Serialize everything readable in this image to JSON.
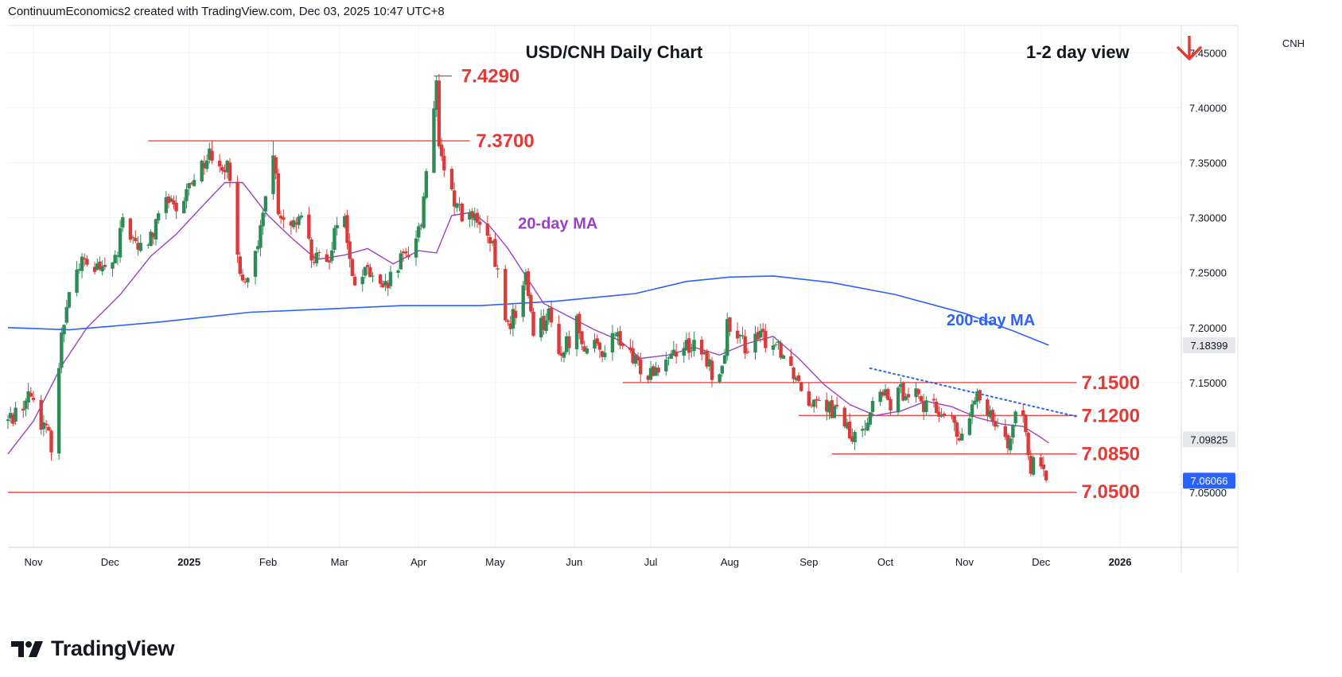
{
  "header": {
    "attribution": "ContinuumEconomics2 created with TradingView.com, Dec 03, 2025 10:47 UTC+8"
  },
  "footer": {
    "brand": "TradingView"
  },
  "colors": {
    "up": "#2e8b57",
    "down": "#d93b3b",
    "level": "#e53935",
    "ma20": "#9c3fc7",
    "ma200": "#2962ff",
    "trendline": "#2962ff",
    "price_tag": "#2962ff",
    "price_tag_gray": "#e6e7ea"
  },
  "chart_data": {
    "type": "candlestick",
    "title": "USD/CNH Daily Chart",
    "view_label": "1-2 day view",
    "view_direction": "down",
    "symbol": "CNH",
    "ylim": [
      7.0,
      7.475
    ],
    "y_ticks": [
      7.05,
      7.1,
      7.15,
      7.2,
      7.25,
      7.3,
      7.35,
      7.4,
      7.45
    ],
    "y_tick_labels": [
      "7.05000",
      "7.10000",
      "7.15000",
      "7.20000",
      "7.25000",
      "7.30000",
      "7.35000",
      "7.40000",
      "7.45000"
    ],
    "x_labels": [
      {
        "date": "2024-11-01",
        "label": "Nov",
        "bold": false
      },
      {
        "date": "2024-12-01",
        "label": "Dec",
        "bold": false
      },
      {
        "date": "2025-01-01",
        "label": "2025",
        "bold": true
      },
      {
        "date": "2025-02-01",
        "label": "Feb",
        "bold": false
      },
      {
        "date": "2025-03-01",
        "label": "Mar",
        "bold": false
      },
      {
        "date": "2025-04-01",
        "label": "Apr",
        "bold": false
      },
      {
        "date": "2025-05-01",
        "label": "May",
        "bold": false
      },
      {
        "date": "2025-06-01",
        "label": "Jun",
        "bold": false
      },
      {
        "date": "2025-07-01",
        "label": "Jul",
        "bold": false
      },
      {
        "date": "2025-08-01",
        "label": "Aug",
        "bold": false
      },
      {
        "date": "2025-09-01",
        "label": "Sep",
        "bold": false
      },
      {
        "date": "2025-10-01",
        "label": "Oct",
        "bold": false
      },
      {
        "date": "2025-11-01",
        "label": "Nov",
        "bold": false
      },
      {
        "date": "2025-12-01",
        "label": "Dec",
        "bold": false
      },
      {
        "date": "2026-01-01",
        "label": "2026",
        "bold": true
      }
    ],
    "x_range": [
      "2024-10-22",
      "2026-01-25"
    ],
    "key_levels": [
      {
        "label": "7.4290",
        "value": 7.429,
        "from": "2025-04-07",
        "to": "2025-04-14"
      },
      {
        "label": "7.3700",
        "value": 7.37,
        "from": "2024-12-16",
        "to": "2025-04-21"
      },
      {
        "label": "7.1500",
        "value": 7.15,
        "from": "2025-06-20",
        "to": "2025-12-15"
      },
      {
        "label": "7.1200",
        "value": 7.12,
        "from": "2025-08-28",
        "to": "2025-12-15"
      },
      {
        "label": "7.0850",
        "value": 7.085,
        "from": "2025-09-10",
        "to": "2025-12-15"
      },
      {
        "label": "7.0500",
        "value": 7.05,
        "from": "2024-10-22",
        "to": "2025-12-15"
      }
    ],
    "trendline": {
      "from_date": "2025-09-25",
      "from_value": 7.163,
      "to_date": "2025-12-15",
      "to_value": 7.119,
      "style": "dotted"
    },
    "series": [
      {
        "name": "20-day MA",
        "label_date": "2025-05-10",
        "label_value": 7.29,
        "points": [
          [
            "2024-10-22",
            7.085
          ],
          [
            "2024-11-01",
            7.115
          ],
          [
            "2024-11-12",
            7.165
          ],
          [
            "2024-11-22",
            7.2
          ],
          [
            "2024-12-05",
            7.23
          ],
          [
            "2024-12-17",
            7.265
          ],
          [
            "2024-12-27",
            7.285
          ],
          [
            "2025-01-06",
            7.31
          ],
          [
            "2025-01-15",
            7.332
          ],
          [
            "2025-01-22",
            7.332
          ],
          [
            "2025-02-01",
            7.302
          ],
          [
            "2025-02-10",
            7.282
          ],
          [
            "2025-02-20",
            7.262
          ],
          [
            "2025-03-03",
            7.266
          ],
          [
            "2025-03-12",
            7.272
          ],
          [
            "2025-03-22",
            7.258
          ],
          [
            "2025-04-01",
            7.27
          ],
          [
            "2025-04-08",
            7.268
          ],
          [
            "2025-04-14",
            7.302
          ],
          [
            "2025-04-22",
            7.305
          ],
          [
            "2025-04-29",
            7.292
          ],
          [
            "2025-05-06",
            7.272
          ],
          [
            "2025-05-13",
            7.247
          ],
          [
            "2025-05-20",
            7.222
          ],
          [
            "2025-05-30",
            7.21
          ],
          [
            "2025-06-09",
            7.198
          ],
          [
            "2025-06-19",
            7.188
          ],
          [
            "2025-06-27",
            7.172
          ],
          [
            "2025-07-08",
            7.175
          ],
          [
            "2025-07-18",
            7.182
          ],
          [
            "2025-07-28",
            7.175
          ],
          [
            "2025-08-07",
            7.185
          ],
          [
            "2025-08-18",
            7.192
          ],
          [
            "2025-08-28",
            7.172
          ],
          [
            "2025-09-07",
            7.148
          ],
          [
            "2025-09-17",
            7.13
          ],
          [
            "2025-09-27",
            7.12
          ],
          [
            "2025-10-07",
            7.124
          ],
          [
            "2025-10-17",
            7.133
          ],
          [
            "2025-10-27",
            7.128
          ],
          [
            "2025-11-06",
            7.118
          ],
          [
            "2025-11-16",
            7.112
          ],
          [
            "2025-11-24",
            7.11
          ],
          [
            "2025-12-01",
            7.1
          ],
          [
            "2025-12-04",
            7.095
          ]
        ]
      },
      {
        "name": "200-day MA",
        "label_date": "2025-10-25",
        "label_value": 7.202,
        "points": [
          [
            "2024-10-22",
            7.2
          ],
          [
            "2024-11-15",
            7.198
          ],
          [
            "2024-12-20",
            7.205
          ],
          [
            "2025-01-25",
            7.214
          ],
          [
            "2025-02-25",
            7.217
          ],
          [
            "2025-03-25",
            7.22
          ],
          [
            "2025-04-25",
            7.22
          ],
          [
            "2025-05-25",
            7.224
          ],
          [
            "2025-06-25",
            7.231
          ],
          [
            "2025-07-15",
            7.242
          ],
          [
            "2025-08-01",
            7.246
          ],
          [
            "2025-08-18",
            7.247
          ],
          [
            "2025-09-10",
            7.241
          ],
          [
            "2025-10-05",
            7.23
          ],
          [
            "2025-11-01",
            7.213
          ],
          [
            "2025-11-20",
            7.197
          ],
          [
            "2025-12-04",
            7.184
          ]
        ]
      }
    ],
    "price_tags": [
      {
        "value": 7.18399,
        "label": "7.18399",
        "style": "gray"
      },
      {
        "value": 7.09825,
        "label": "7.09825",
        "style": "gray"
      },
      {
        "value": 7.06066,
        "label": "7.06066",
        "style": "blue"
      }
    ],
    "ohlc_anchors": [
      [
        "2024-10-22",
        7.115
      ],
      [
        "2024-10-31",
        7.14
      ],
      [
        "2024-11-05",
        7.11
      ],
      [
        "2024-11-08",
        7.095
      ],
      [
        "2024-11-12",
        7.19
      ],
      [
        "2024-11-15",
        7.24
      ],
      [
        "2024-11-20",
        7.26
      ],
      [
        "2024-11-28",
        7.25
      ],
      [
        "2024-12-04",
        7.265
      ],
      [
        "2024-12-06",
        7.3
      ],
      [
        "2024-12-12",
        7.27
      ],
      [
        "2024-12-18",
        7.285
      ],
      [
        "2024-12-23",
        7.32
      ],
      [
        "2024-12-27",
        7.3
      ],
      [
        "2025-01-03",
        7.34
      ],
      [
        "2025-01-10",
        7.36
      ],
      [
        "2025-01-16",
        7.345
      ],
      [
        "2025-01-20",
        7.265
      ],
      [
        "2025-01-23",
        7.24
      ],
      [
        "2025-01-28",
        7.27
      ],
      [
        "2025-02-03",
        7.365
      ],
      [
        "2025-02-05",
        7.3
      ],
      [
        "2025-02-10",
        7.285
      ],
      [
        "2025-02-14",
        7.31
      ],
      [
        "2025-02-18",
        7.265
      ],
      [
        "2025-02-24",
        7.255
      ],
      [
        "2025-02-28",
        7.3
      ],
      [
        "2025-03-03",
        7.3
      ],
      [
        "2025-03-06",
        7.24
      ],
      [
        "2025-03-12",
        7.25
      ],
      [
        "2025-03-18",
        7.23
      ],
      [
        "2025-03-24",
        7.255
      ],
      [
        "2025-03-28",
        7.27
      ],
      [
        "2025-04-02",
        7.295
      ],
      [
        "2025-04-04",
        7.345
      ],
      [
        "2025-04-08",
        7.425
      ],
      [
        "2025-04-10",
        7.35
      ],
      [
        "2025-04-14",
        7.32
      ],
      [
        "2025-04-18",
        7.305
      ],
      [
        "2025-04-24",
        7.295
      ],
      [
        "2025-04-30",
        7.27
      ],
      [
        "2025-05-06",
        7.2
      ],
      [
        "2025-05-09",
        7.215
      ],
      [
        "2025-05-13",
        7.245
      ],
      [
        "2025-05-16",
        7.2
      ],
      [
        "2025-05-22",
        7.21
      ],
      [
        "2025-05-27",
        7.175
      ],
      [
        "2025-06-02",
        7.205
      ],
      [
        "2025-06-06",
        7.18
      ],
      [
        "2025-06-12",
        7.18
      ],
      [
        "2025-06-18",
        7.192
      ],
      [
        "2025-06-24",
        7.168
      ],
      [
        "2025-06-30",
        7.16
      ],
      [
        "2025-07-04",
        7.168
      ],
      [
        "2025-07-10",
        7.18
      ],
      [
        "2025-07-16",
        7.185
      ],
      [
        "2025-07-22",
        7.172
      ],
      [
        "2025-07-28",
        7.15
      ],
      [
        "2025-07-31",
        7.2
      ],
      [
        "2025-08-04",
        7.185
      ],
      [
        "2025-08-08",
        7.185
      ],
      [
        "2025-08-14",
        7.19
      ],
      [
        "2025-08-20",
        7.185
      ],
      [
        "2025-08-26",
        7.16
      ],
      [
        "2025-09-01",
        7.135
      ],
      [
        "2025-09-05",
        7.14
      ],
      [
        "2025-09-10",
        7.125
      ],
      [
        "2025-09-15",
        7.115
      ],
      [
        "2025-09-18",
        7.095
      ],
      [
        "2025-09-24",
        7.12
      ],
      [
        "2025-09-29",
        7.14
      ],
      [
        "2025-10-03",
        7.13
      ],
      [
        "2025-10-09",
        7.145
      ],
      [
        "2025-10-14",
        7.14
      ],
      [
        "2025-10-17",
        7.125
      ],
      [
        "2025-10-22",
        7.125
      ],
      [
        "2025-10-27",
        7.115
      ],
      [
        "2025-10-30",
        7.095
      ],
      [
        "2025-11-03",
        7.12
      ],
      [
        "2025-11-06",
        7.135
      ],
      [
        "2025-11-11",
        7.125
      ],
      [
        "2025-11-14",
        7.115
      ],
      [
        "2025-11-18",
        7.095
      ],
      [
        "2025-11-21",
        7.115
      ],
      [
        "2025-11-25",
        7.11
      ],
      [
        "2025-11-27",
        7.075
      ],
      [
        "2025-12-01",
        7.07
      ],
      [
        "2025-12-03",
        7.061
      ]
    ]
  }
}
